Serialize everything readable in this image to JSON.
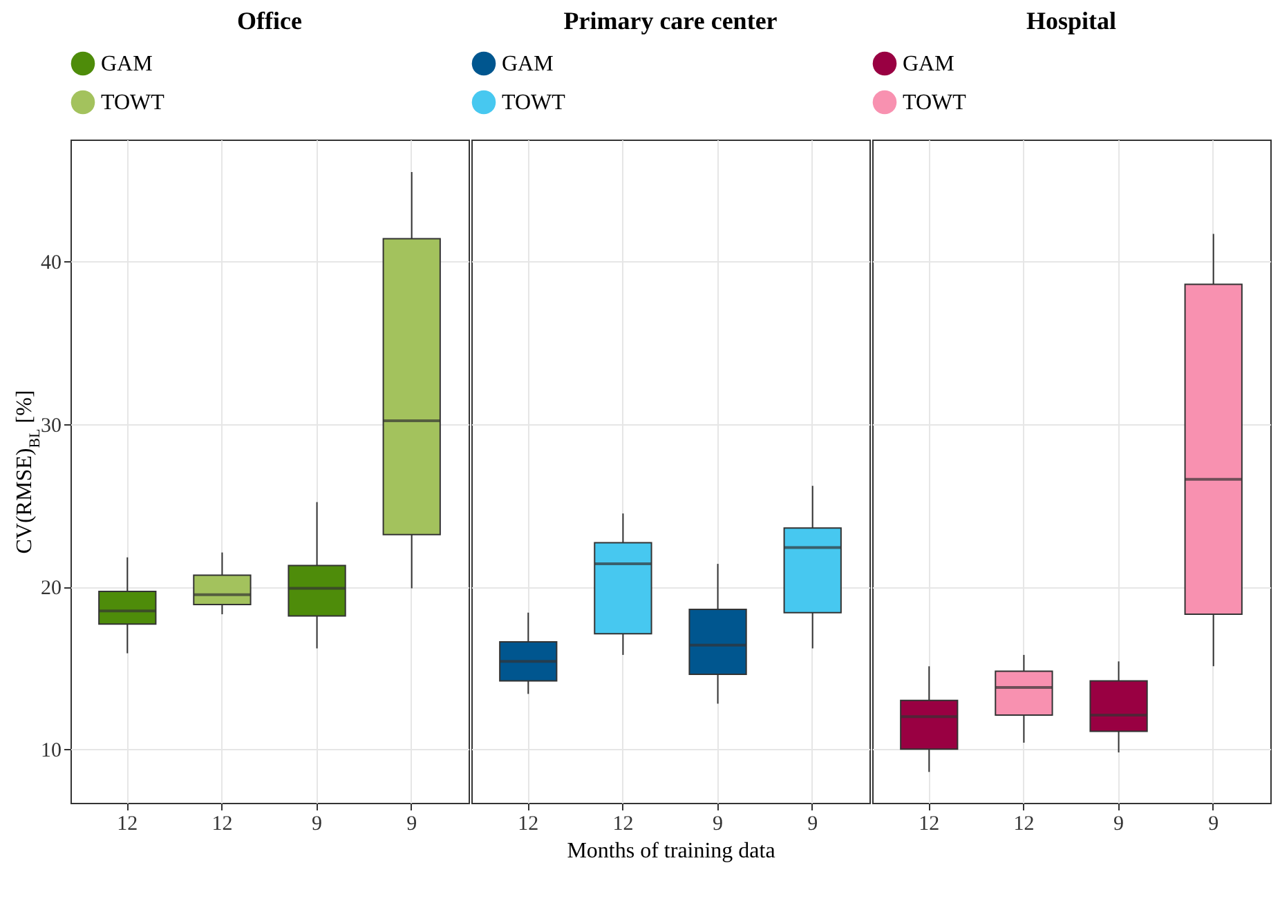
{
  "chart_data": [
    {
      "type": "box",
      "title": "Office",
      "ylabel": "CV(RMSE)$_{BL}$ [%]",
      "categories": [
        "12",
        "12",
        "9",
        "9"
      ],
      "ylim": [
        6.7,
        47.5
      ],
      "yticks": [
        10,
        20,
        30,
        40
      ],
      "grid": true,
      "legend": "top",
      "series": [
        {
          "name": "GAM",
          "color": "#4e8c0a",
          "boxes": [
            {
              "low": 15.9,
              "q1": 17.7,
              "median": 18.5,
              "q3": 19.7,
              "high": 21.8
            },
            null,
            {
              "low": 16.2,
              "q1": 18.2,
              "median": 19.9,
              "q3": 21.3,
              "high": 25.2
            },
            null
          ]
        },
        {
          "name": "TOWT",
          "color": "#a3c25d",
          "boxes": [
            null,
            {
              "low": 18.3,
              "q1": 18.9,
              "median": 19.5,
              "q3": 20.7,
              "high": 22.1
            },
            null,
            {
              "low": 19.9,
              "q1": 23.2,
              "median": 30.2,
              "q3": 41.4,
              "high": 45.5
            }
          ]
        }
      ]
    },
    {
      "type": "box",
      "title": "Primary care center",
      "xlabel": "Months of training data",
      "categories": [
        "12",
        "12",
        "9",
        "9"
      ],
      "ylim": [
        6.7,
        47.5
      ],
      "yticks": [
        10,
        20,
        30,
        40
      ],
      "grid": true,
      "legend": "top",
      "tick_labels": "x",
      "series": [
        {
          "name": "GAM",
          "color": "#00568f",
          "boxes": [
            {
              "low": 13.4,
              "q1": 14.2,
              "median": 15.4,
              "q3": 16.6,
              "high": 18.4
            },
            null,
            {
              "low": 12.8,
              "q1": 14.6,
              "median": 16.4,
              "q3": 18.6,
              "high": 21.4
            },
            null
          ]
        },
        {
          "name": "TOWT",
          "color": "#47c8f0",
          "boxes": [
            null,
            {
              "low": 15.8,
              "q1": 17.1,
              "median": 21.4,
              "q3": 22.7,
              "high": 24.5
            },
            null,
            {
              "low": 16.2,
              "q1": 18.4,
              "median": 22.4,
              "q3": 23.6,
              "high": 26.2
            }
          ]
        }
      ]
    },
    {
      "type": "box",
      "title": "Hospital",
      "categories": [
        "12",
        "12",
        "9",
        "9"
      ],
      "ylim": [
        6.7,
        47.5
      ],
      "yticks": [
        10,
        20,
        30,
        40
      ],
      "grid": true,
      "legend": "top",
      "tick_labels": "x",
      "series": [
        {
          "name": "GAM",
          "color": "#990042",
          "boxes": [
            {
              "low": 8.6,
              "q1": 10.0,
              "median": 12.0,
              "q3": 13.0,
              "high": 15.1
            },
            null,
            {
              "low": 9.8,
              "q1": 11.1,
              "median": 12.1,
              "q3": 14.2,
              "high": 15.4
            },
            null
          ]
        },
        {
          "name": "TOWT",
          "color": "#f891b0",
          "boxes": [
            null,
            {
              "low": 10.4,
              "q1": 12.1,
              "median": 13.8,
              "q3": 14.8,
              "high": 15.8
            },
            null,
            {
              "low": 15.1,
              "q1": 18.3,
              "median": 26.6,
              "q3": 38.6,
              "high": 41.7
            }
          ]
        }
      ]
    }
  ]
}
